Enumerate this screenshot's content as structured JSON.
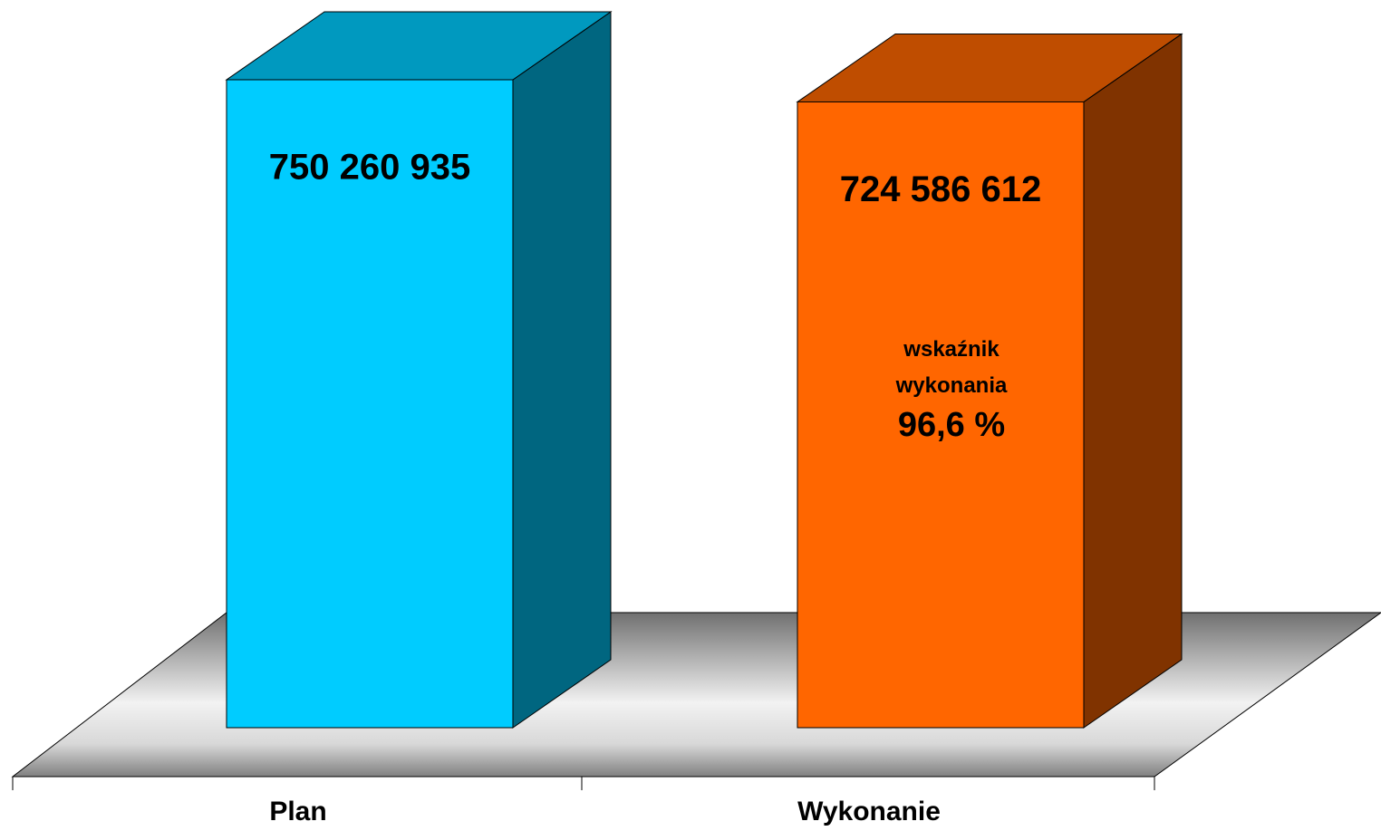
{
  "chart_data": {
    "type": "bar3d",
    "categories": [
      "Plan",
      "Wykonanie"
    ],
    "values": [
      750260935,
      724586612
    ],
    "value_labels": [
      "750 260 935",
      "724 586 612"
    ],
    "colors": [
      "#00ccff",
      "#ff6600"
    ],
    "annotation": [
      "wskaźnik wykonania",
      "96,6 %"
    ]
  }
}
